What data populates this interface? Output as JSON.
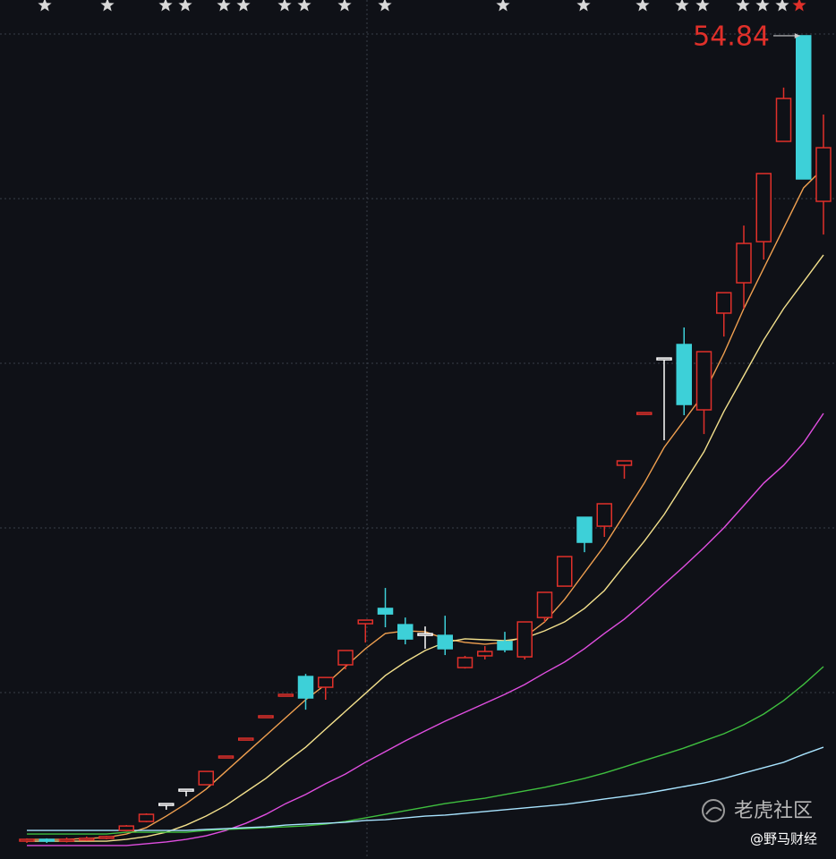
{
  "chart_data": {
    "type": "candlestick",
    "ylim": [
      4.18,
      57.04
    ],
    "grid": true,
    "open": [
      5.28,
      5.39,
      5.3,
      5.39,
      5.45,
      5.94,
      6.49,
      7.59,
      8.47,
      8.75,
      10.51,
      11.61,
      12.99,
      14.31,
      15.41,
      14.75,
      16.13,
      18.66,
      19.6,
      18.6,
      18.05,
      17.94,
      15.96,
      16.68,
      17.56,
      16.62,
      19.04,
      20.97,
      25.21,
      24.66,
      28.41,
      31.65,
      35.01,
      35.84,
      31.82,
      37.77,
      39.64,
      42.17,
      48.34,
      54.84,
      44.65
    ],
    "high": [
      5.45,
      5.45,
      5.5,
      5.56,
      5.61,
      6.27,
      6.99,
      7.59,
      8.47,
      9.57,
      10.51,
      11.61,
      12.99,
      14.31,
      15.57,
      15.35,
      17.01,
      18.88,
      20.86,
      19.04,
      18.49,
      19.15,
      16.68,
      17.28,
      18.16,
      18.77,
      20.59,
      22.79,
      25.21,
      26.04,
      28.68,
      31.65,
      35.01,
      36.89,
      35.4,
      39.03,
      43.16,
      46.36,
      51.65,
      54.84,
      49.99
    ],
    "low": [
      5.17,
      5.17,
      5.2,
      5.3,
      5.39,
      5.88,
      6.44,
      7.21,
      8.03,
      8.75,
      10.51,
      11.61,
      12.99,
      14.31,
      13.37,
      13.98,
      15.85,
      17.5,
      18.44,
      17.39,
      17.12,
      16.73,
      15.9,
      16.46,
      16.9,
      16.46,
      18.77,
      20.97,
      23.06,
      24.0,
      27.58,
      31.65,
      29.95,
      31.49,
      30.33,
      36.33,
      38.04,
      41.07,
      48.34,
      46.03,
      42.61
    ],
    "close": [
      5.39,
      5.28,
      5.39,
      5.45,
      5.56,
      6.21,
      6.93,
      7.59,
      8.47,
      9.57,
      10.51,
      11.61,
      12.99,
      14.31,
      14.09,
      15.35,
      17.01,
      18.88,
      19.26,
      17.72,
      18.05,
      17.12,
      16.57,
      16.95,
      17.06,
      18.77,
      20.59,
      22.79,
      23.67,
      26.04,
      28.68,
      31.65,
      35.01,
      32.15,
      35.4,
      39.03,
      42.06,
      46.36,
      50.98,
      46.03,
      47.95
    ],
    "colors": [
      "#e0302a",
      "#3dd0d8",
      "#e0302a",
      "#e0302a",
      "#e0302a",
      "#e0302a",
      "#e0302a",
      "#ffffff",
      "#ffffff",
      "#e0302a",
      "#e0302a",
      "#e0302a",
      "#e0302a",
      "#e0302a",
      "#3dd0d8",
      "#e0302a",
      "#e0302a",
      "#e0302a",
      "#3dd0d8",
      "#3dd0d8",
      "#ffffff",
      "#3dd0d8",
      "#e0302a",
      "#e0302a",
      "#3dd0d8",
      "#e0302a",
      "#e0302a",
      "#e0302a",
      "#3dd0d8",
      "#e0302a",
      "#e0302a",
      "#e0302a",
      "#ffffff",
      "#3dd0d8",
      "#e0302a",
      "#e0302a",
      "#e0302a",
      "#e0302a",
      "#e0302a",
      "#3dd0d8",
      "#e0302a"
    ],
    "series": [
      {
        "color": "#f0a050",
        "values": [
          5.39,
          5.39,
          5.39,
          5.45,
          5.5,
          5.72,
          6.11,
          6.82,
          7.59,
          8.48,
          9.58,
          10.68,
          11.78,
          12.88,
          13.98,
          14.92,
          16.02,
          17.12,
          18.06,
          18.22,
          18.17,
          17.73,
          17.51,
          17.4,
          17.51,
          17.84,
          18.77,
          20.15,
          21.8,
          23.45,
          25.38,
          27.31,
          29.51,
          31.16,
          32.82,
          35.29,
          38.05,
          40.53,
          43.0,
          45.48,
          46.69
        ]
      },
      {
        "color": "#f3e08c",
        "values": [
          5.28,
          5.28,
          5.28,
          5.28,
          5.28,
          5.39,
          5.56,
          5.83,
          6.27,
          6.82,
          7.48,
          8.31,
          9.14,
          10.13,
          11.06,
          12.17,
          13.27,
          14.37,
          15.47,
          16.3,
          17.01,
          17.51,
          17.73,
          17.67,
          17.62,
          17.78,
          18.22,
          18.77,
          19.6,
          20.7,
          22.24,
          23.73,
          25.38,
          27.31,
          29.24,
          31.72,
          33.92,
          36.12,
          38.05,
          39.7,
          41.35
        ]
      },
      {
        "color": "#e04ee0",
        "values": [
          5.01,
          5.01,
          5.01,
          5.01,
          5.01,
          5.01,
          5.12,
          5.23,
          5.39,
          5.61,
          5.94,
          6.38,
          6.93,
          7.59,
          8.15,
          8.81,
          9.41,
          10.13,
          10.79,
          11.45,
          12.06,
          12.66,
          13.21,
          13.76,
          14.31,
          14.92,
          15.63,
          16.3,
          17.12,
          18.06,
          18.94,
          19.99,
          21.09,
          22.19,
          23.34,
          24.56,
          25.93,
          27.31,
          28.41,
          29.79,
          31.6
        ]
      },
      {
        "color": "#3fbf3f",
        "values": [
          5.72,
          5.72,
          5.72,
          5.72,
          5.72,
          5.83,
          5.83,
          5.83,
          5.83,
          5.94,
          6.0,
          6.05,
          6.11,
          6.16,
          6.22,
          6.33,
          6.49,
          6.71,
          6.93,
          7.15,
          7.37,
          7.59,
          7.76,
          7.92,
          8.15,
          8.37,
          8.59,
          8.86,
          9.14,
          9.47,
          9.85,
          10.24,
          10.62,
          11.01,
          11.45,
          11.89,
          12.44,
          13.1,
          13.93,
          14.92,
          16.02
        ]
      },
      {
        "color": "#a8e4ff",
        "values": [
          5.94,
          5.94,
          5.94,
          5.94,
          5.94,
          5.94,
          5.94,
          5.94,
          5.94,
          6.0,
          6.05,
          6.11,
          6.16,
          6.27,
          6.33,
          6.38,
          6.44,
          6.55,
          6.6,
          6.71,
          6.82,
          6.88,
          6.99,
          7.1,
          7.21,
          7.32,
          7.43,
          7.54,
          7.7,
          7.87,
          8.03,
          8.2,
          8.42,
          8.64,
          8.86,
          9.14,
          9.47,
          9.8,
          10.13,
          10.62,
          11.06
        ]
      }
    ]
  },
  "watermarks": [
    "老虎社区",
    "@野马财经"
  ]
}
